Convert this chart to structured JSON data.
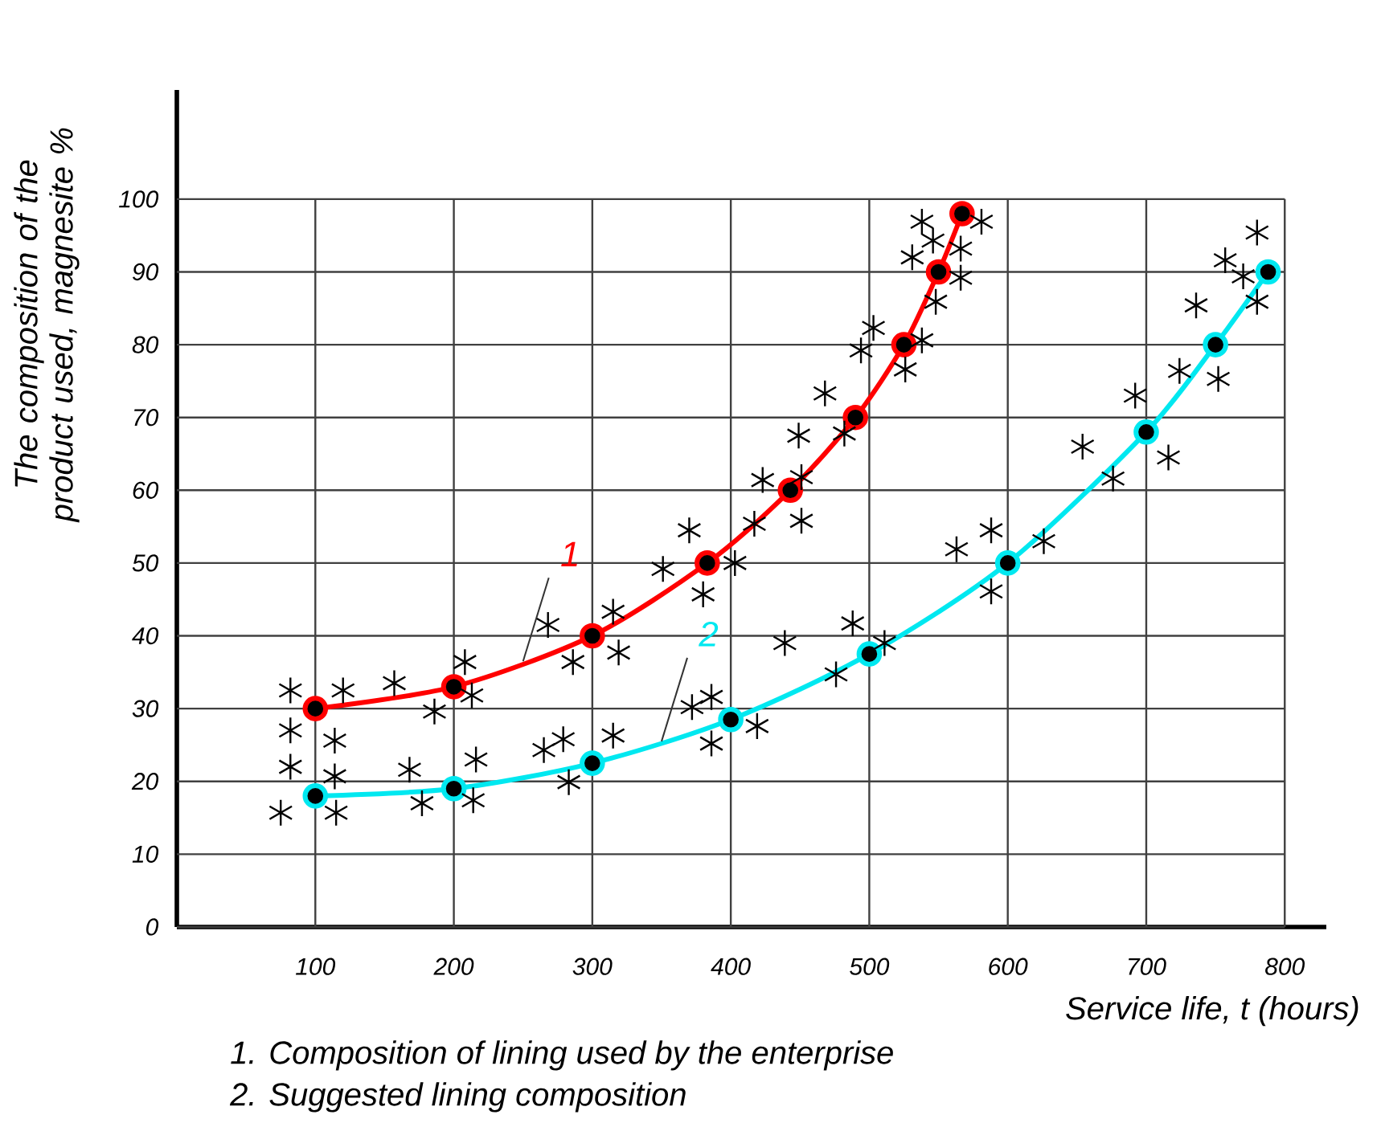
{
  "chart_data": {
    "type": "line",
    "xlabel": "Service life, t (hours)",
    "ylabel": "The composition of the product used, magnesite %",
    "xlim": [
      0,
      830
    ],
    "ylim": [
      0,
      115
    ],
    "xticks": [
      100,
      200,
      300,
      400,
      500,
      600,
      700,
      800
    ],
    "yticks": [
      0,
      10,
      20,
      30,
      40,
      50,
      60,
      70,
      80,
      90,
      100
    ],
    "grid": true,
    "series": [
      {
        "name": "1",
        "type": "line",
        "color": "#ff0000",
        "marker": "circle",
        "x": [
          100,
          200,
          300,
          383,
          443,
          490,
          525,
          550,
          567
        ],
        "values": [
          30,
          33,
          40,
          50,
          60,
          70,
          80,
          90,
          98
        ]
      },
      {
        "name": "2",
        "type": "line",
        "color": "#00e8f0",
        "marker": "circle",
        "x": [
          100,
          200,
          300,
          400,
          500,
          600,
          700,
          750,
          788
        ],
        "values": [
          18,
          19,
          22.5,
          28.5,
          37.5,
          50,
          68,
          80,
          90
        ]
      },
      {
        "type": "scatter",
        "color": "#000000",
        "marker": "cross",
        "x": [
          82,
          82,
          82,
          75,
          114,
          114,
          115,
          120,
          157,
          186,
          208,
          213,
          268,
          286,
          315,
          319,
          351,
          370,
          380,
          403,
          417,
          423,
          449,
          451,
          451,
          468,
          482,
          494,
          503,
          526,
          538,
          531,
          538,
          548,
          546,
          566,
          566,
          581,
          168,
          177,
          216,
          214,
          265,
          279,
          283,
          315,
          372,
          386,
          386,
          419,
          439,
          476,
          488,
          511,
          563,
          588,
          588,
          626,
          654,
          676,
          692,
          716,
          724,
          736,
          757,
          752,
          770,
          780,
          780
        ],
        "values": [
          32.5,
          27,
          22,
          15.7,
          25.6,
          20.7,
          15.7,
          32.5,
          33.5,
          29.6,
          36.4,
          31.8,
          41.5,
          36.4,
          43.3,
          37.7,
          49.2,
          54.5,
          45.7,
          50,
          55.4,
          61.4,
          67.5,
          61.8,
          55.8,
          73.3,
          67.8,
          79.2,
          82.3,
          76.6,
          80.6,
          92,
          96.9,
          85.9,
          94.3,
          89.2,
          93.2,
          96.9,
          21.6,
          17,
          23,
          17.4,
          24.3,
          25.8,
          19.9,
          26.3,
          30.2,
          31.6,
          25.2,
          27.6,
          39,
          34.7,
          41.7,
          39,
          51.9,
          54.5,
          46.1,
          53,
          66,
          61.6,
          73,
          64.5,
          76.4,
          85.4,
          91.6,
          75.3,
          89.4,
          95.4,
          85.9
        ]
      }
    ],
    "annotations": [
      "1. Composition of lining used by the enterprise",
      "2. Suggested lining composition"
    ]
  }
}
